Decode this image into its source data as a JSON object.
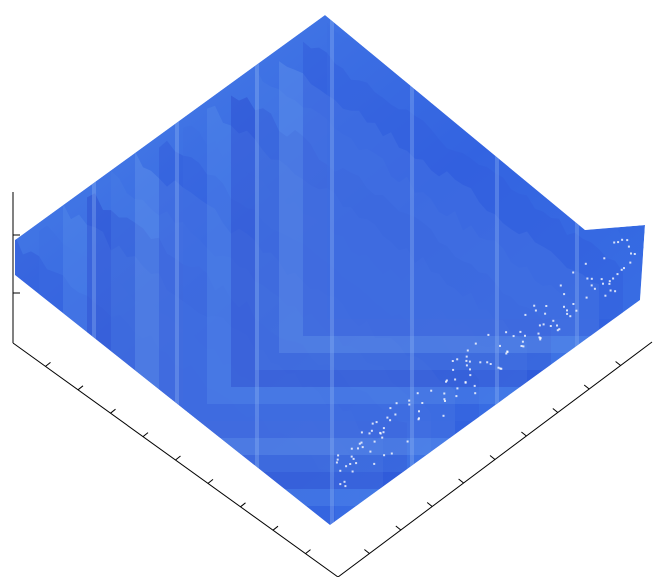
{
  "chart_data": {
    "type": "surface"
  }
}
